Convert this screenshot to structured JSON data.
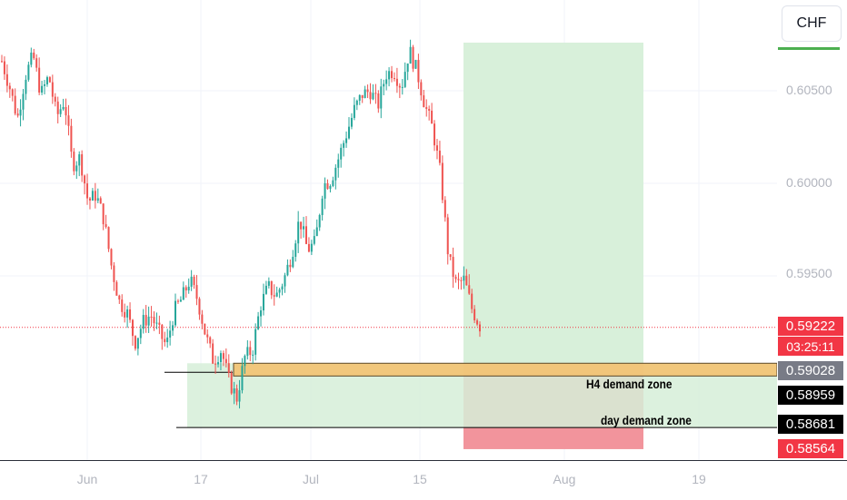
{
  "currency": "CHF",
  "price_axis": {
    "ticks": [
      "0.60500",
      "0.60000",
      "0.59500"
    ],
    "tags": {
      "current_price": "0.59222",
      "countdown": "03:25:11",
      "zone_h4_top": "0.59028",
      "zone_h4_bottom": "0.58959",
      "zone_day_bottom": "0.58681",
      "stop_price": "0.58564"
    }
  },
  "time_axis": {
    "ticks": [
      "Jun",
      "17",
      "Jul",
      "15",
      "Aug",
      "19"
    ]
  },
  "annotations": {
    "h4_zone_label": "H4 demand zone",
    "day_zone_label": "day demand zone"
  },
  "colors": {
    "bull": "#26a69a",
    "bear": "#ef5350",
    "target_zone": "#d6efd8",
    "stop_zone": "#f2949c",
    "h4_zone": "#f5c06b",
    "current_price": "#f23645"
  },
  "chart_data": {
    "type": "candlestick",
    "symbol_quote": "CHF",
    "ylim": [
      0.5857,
      0.6077
    ],
    "y_ticks": [
      0.605,
      0.6,
      0.595
    ],
    "x_ticks": [
      "Jun",
      "17",
      "Jul",
      "15",
      "Aug",
      "19"
    ],
    "current_price": 0.59222,
    "close_path": [
      0.6066,
      0.6052,
      0.6035,
      0.6058,
      0.6069,
      0.6048,
      0.6058,
      0.6036,
      0.6045,
      0.601,
      0.6014,
      0.599,
      0.5994,
      0.5981,
      0.5955,
      0.5936,
      0.593,
      0.5914,
      0.5925,
      0.5929,
      0.592,
      0.5912,
      0.5931,
      0.5938,
      0.5948,
      0.5937,
      0.5918,
      0.5904,
      0.591,
      0.5893,
      0.5884,
      0.5906,
      0.591,
      0.5934,
      0.5944,
      0.5939,
      0.5948,
      0.5962,
      0.5981,
      0.5964,
      0.5968,
      0.5999,
      0.6002,
      0.6014,
      0.6027,
      0.604,
      0.6048,
      0.605,
      0.6042,
      0.6059,
      0.6061,
      0.6052,
      0.6072,
      0.606,
      0.6042,
      0.6029,
      0.6004,
      0.596,
      0.5945,
      0.5948,
      0.5932,
      0.5923
    ],
    "zones": {
      "h4_demand": [
        0.58959,
        0.59028
      ],
      "day_demand": [
        0.58681,
        0.59028
      ],
      "long_position": {
        "entry": 0.59028,
        "target": 0.6076,
        "stop": 0.58564
      }
    }
  }
}
